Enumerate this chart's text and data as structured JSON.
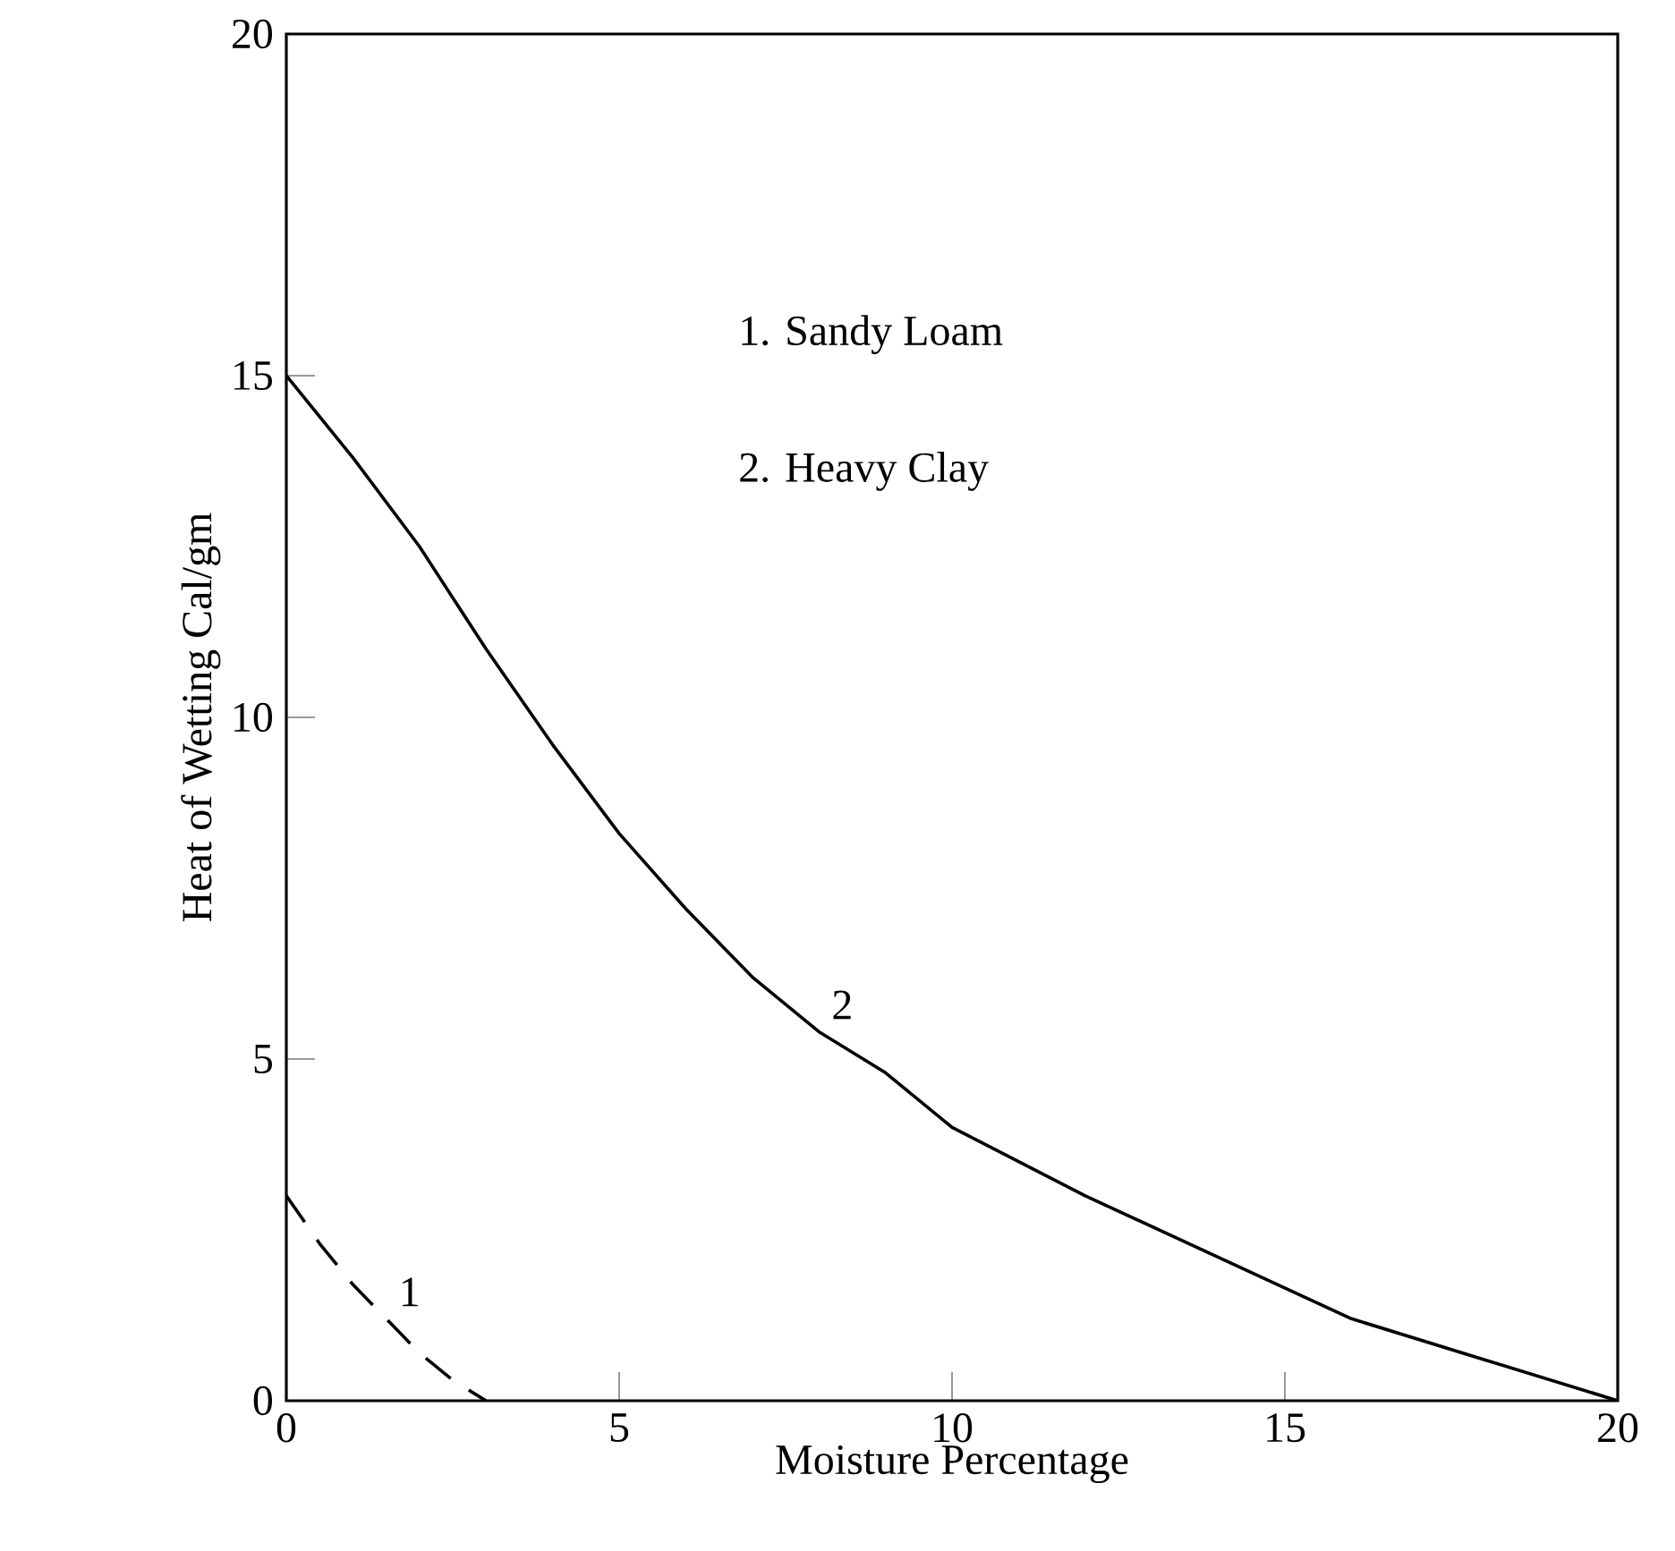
{
  "chart_data": {
    "type": "line",
    "xlabel": "Moisture Percentage",
    "ylabel": "Heat of Wetting  Cal/gm",
    "xlim": [
      0,
      20
    ],
    "ylim": [
      0,
      20
    ],
    "xticks": [
      0,
      5,
      10,
      15,
      20
    ],
    "yticks": [
      0,
      5,
      10,
      15,
      20
    ],
    "grid": false,
    "marker": "none",
    "series": [
      {
        "name": "1",
        "color": "#000000",
        "line_style": "dashed",
        "x": [
          0,
          0.5,
          1,
          1.5,
          2,
          2.5,
          3
        ],
        "values": [
          3,
          2.3,
          1.7,
          1.2,
          0.7,
          0.3,
          0
        ]
      },
      {
        "name": "2",
        "color": "#000000",
        "line_style": "solid",
        "x": [
          0,
          1,
          2,
          3,
          4,
          5,
          6,
          7,
          8,
          9,
          10,
          12,
          14,
          16,
          18,
          20
        ],
        "values": [
          15,
          13.8,
          12.5,
          11.0,
          9.6,
          8.3,
          7.2,
          6.2,
          5.4,
          4.8,
          4.0,
          3.0,
          2.1,
          1.2,
          0.6,
          0
        ]
      }
    ],
    "annotations": [
      "1.   Sandy Loam",
      "2.   Heavy Clay"
    ]
  }
}
